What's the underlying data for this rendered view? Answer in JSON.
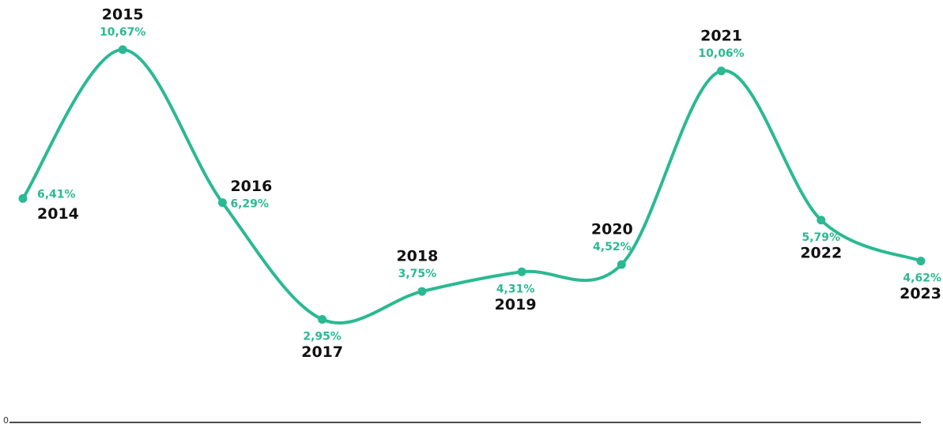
{
  "chart_data": {
    "type": "line",
    "categories": [
      "2014",
      "2015",
      "2016",
      "2017",
      "2018",
      "2019",
      "2020",
      "2021",
      "2022",
      "2023"
    ],
    "values": [
      6.41,
      10.67,
      6.29,
      2.95,
      3.75,
      4.31,
      4.52,
      10.06,
      5.79,
      4.62
    ],
    "value_labels": [
      "6,41%",
      "10,67%",
      "6,29%",
      "2,95%",
      "3,75%",
      "4,31%",
      "4,52%",
      "10,06%",
      "5,79%",
      "4,62%"
    ],
    "color": "#2bb993",
    "ylim": [
      0,
      12
    ],
    "yticks": [
      0
    ]
  }
}
